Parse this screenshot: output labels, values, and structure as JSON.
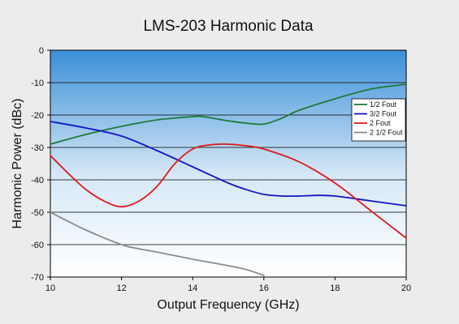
{
  "chart_data": {
    "type": "line",
    "title": "LMS-203 Harmonic Data",
    "xlabel": "Output Frequency (GHz)",
    "ylabel": "Harmonic Power (dBc)",
    "xlim": [
      10,
      20
    ],
    "ylim": [
      -70,
      0
    ],
    "xticks": [
      10,
      12,
      14,
      16,
      18,
      20
    ],
    "yticks": [
      0,
      -10,
      -20,
      -30,
      -40,
      -50,
      -60,
      -70
    ],
    "xtick_labels": [
      "10",
      "12",
      "14",
      "16",
      "18",
      "20"
    ],
    "ytick_labels": [
      "0",
      "-10",
      "-20",
      "-30",
      "-40",
      "-50",
      "-60",
      "-70"
    ],
    "grid": "horizontal",
    "legend_position": "right",
    "background_gradient": [
      "#3a8fd8",
      "#d6e8f6",
      "#ffffff"
    ],
    "series": [
      {
        "name": "1/2 Fout",
        "color": "#1e7a3a",
        "x": [
          10,
          11,
          12,
          13,
          14,
          14.3,
          15,
          15.5,
          16,
          16.5,
          17,
          18,
          19,
          20
        ],
        "y": [
          -29,
          -26,
          -23.5,
          -21.5,
          -20.5,
          -20.5,
          -21.8,
          -22.5,
          -22.8,
          -21,
          -18.5,
          -15,
          -12,
          -10.5
        ]
      },
      {
        "name": "3/2 Fout",
        "color": "#1414c8",
        "x": [
          10,
          11,
          12,
          13,
          14,
          15,
          15.5,
          16,
          16.5,
          17,
          17.5,
          18,
          19,
          20
        ],
        "y": [
          -22,
          -24,
          -26.5,
          -31,
          -36,
          -41,
          -43,
          -44.5,
          -45,
          -45,
          -44.8,
          -45,
          -46.5,
          -48
        ]
      },
      {
        "name": "2 Fout",
        "color": "#e01818",
        "x": [
          10,
          10.5,
          11,
          11.5,
          12,
          12.5,
          13,
          13.5,
          14,
          14.5,
          15,
          15.5,
          16,
          17,
          18,
          19,
          20
        ],
        "y": [
          -32.5,
          -38,
          -43,
          -46.5,
          -48.3,
          -46.5,
          -42,
          -35,
          -30.5,
          -29.2,
          -29,
          -29.5,
          -30.5,
          -34.5,
          -41,
          -49.5,
          -58
        ]
      },
      {
        "name": "2 1/2 Fout",
        "color": "#8c8c8c",
        "x": [
          10,
          11,
          12,
          12.5,
          13,
          14,
          15,
          15.5,
          16
        ],
        "y": [
          -50,
          -55.5,
          -60,
          -61.3,
          -62.3,
          -64.5,
          -66.5,
          -67.7,
          -69.5
        ]
      }
    ]
  }
}
